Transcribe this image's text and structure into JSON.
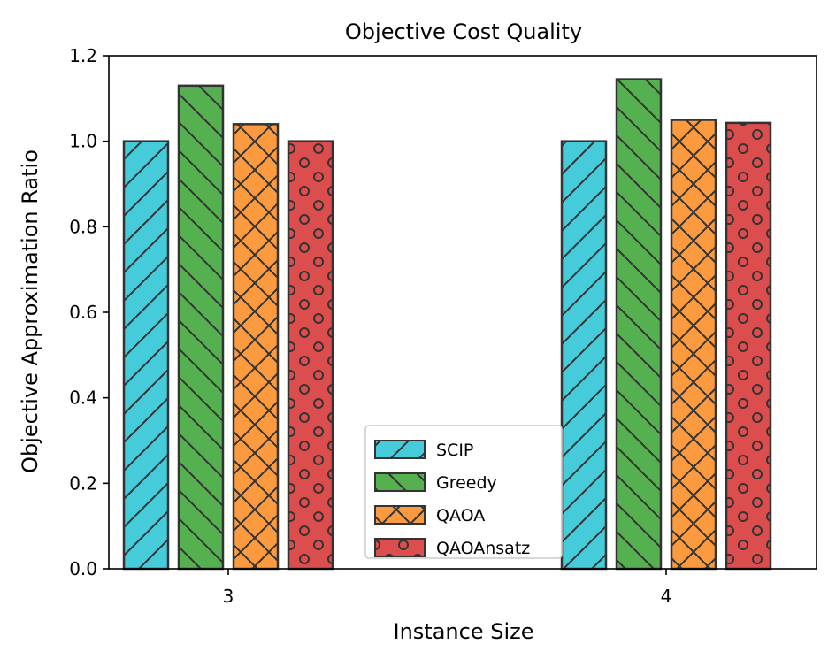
{
  "chart_data": {
    "type": "bar",
    "title": "Objective Cost Quality",
    "xlabel": "Instance Size",
    "ylabel": "Objective Approximation Ratio",
    "categories": [
      "3",
      "4"
    ],
    "ylim": [
      0,
      1.2
    ],
    "yticks": [
      "0.0",
      "0.2",
      "0.4",
      "0.6",
      "0.8",
      "1.0",
      "1.2"
    ],
    "grid": false,
    "legend_position": "lower-center",
    "series": [
      {
        "name": "SCIP",
        "values": [
          1.0,
          1.0
        ],
        "color": "#45CBD9",
        "hatch": "slash"
      },
      {
        "name": "Greedy",
        "values": [
          1.13,
          1.145
        ],
        "color": "#55B04F",
        "hatch": "backslash"
      },
      {
        "name": "QAOA",
        "values": [
          1.04,
          1.05
        ],
        "color": "#FB9A3F",
        "hatch": "cross"
      },
      {
        "name": "QAOAnsatz",
        "values": [
          1.0,
          1.043
        ],
        "color": "#DC4D4E",
        "hatch": "circles"
      }
    ]
  }
}
